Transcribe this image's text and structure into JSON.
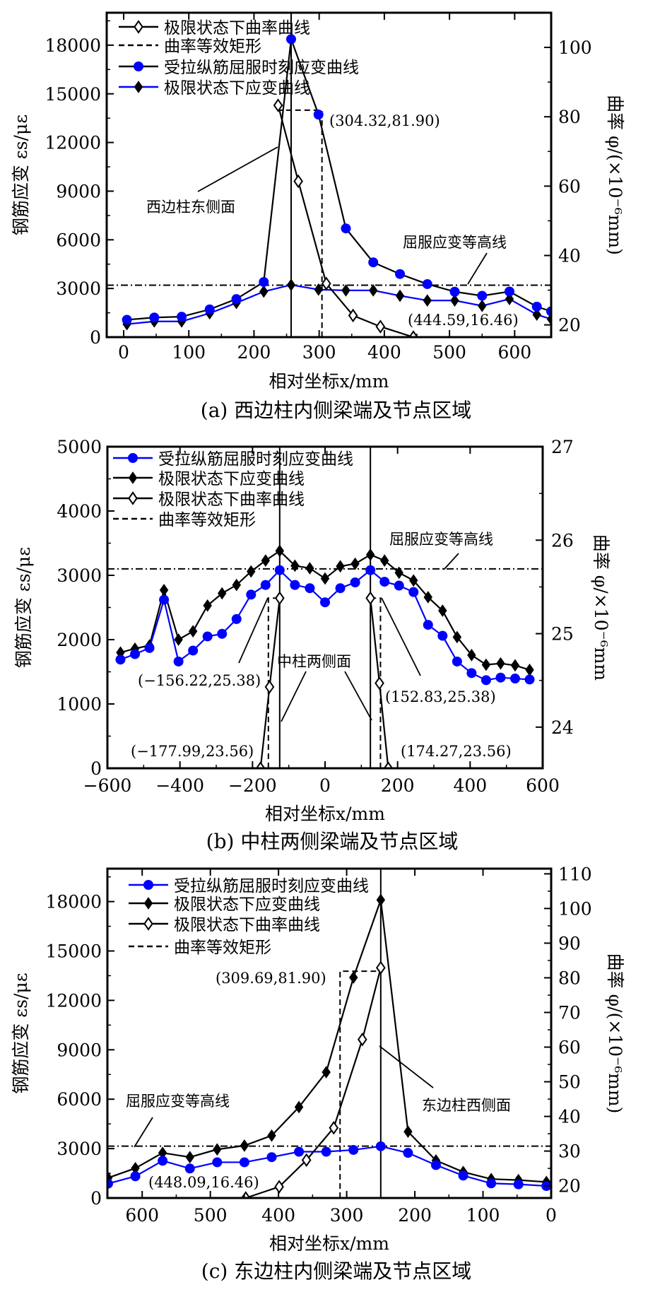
{
  "chart_data": [
    {
      "type": "line",
      "caption": "(a)  西边柱内侧梁端及节点区域",
      "xlabel": "相对坐标x/mm",
      "ylabel": "钢筋应变 εs/με",
      "ylabel_right": "曲率 φ/(×10⁻⁶mm)",
      "xlim": [
        -26,
        656
      ],
      "ylim": [
        0,
        20000
      ],
      "y2lim": [
        16.46,
        110
      ],
      "xticks": [
        0,
        100,
        200,
        300,
        400,
        500,
        600
      ],
      "xtick_labels": [
        "0",
        "100",
        "200",
        "300",
        "400",
        "500",
        "600"
      ],
      "yticks": [
        0,
        3000,
        6000,
        9000,
        12000,
        15000,
        18000
      ],
      "ytick_labels": [
        "0",
        "3000",
        "6000",
        "9000",
        "12000",
        "15000",
        "18000"
      ],
      "y2ticks": [
        20,
        40,
        60,
        80,
        100
      ],
      "y2tick_labels": [
        "20",
        "40",
        "60",
        "80",
        "100"
      ],
      "legend": [
        "curv",
        "rect",
        "yield",
        "ult"
      ],
      "series": {
        "curv": {
          "name": "极限状态下曲率曲线",
          "axis": "right",
          "line": "#000000",
          "marker": "open-diamond",
          "x": [
            237,
            268,
            311,
            352,
            394,
            444.59
          ],
          "y": [
            83.3,
            61.4,
            31.9,
            22.7,
            19.5,
            16.46
          ]
        },
        "rect": {
          "name": "曲率等效矩形",
          "axis": "right",
          "line": "#000000",
          "marker": "dashed",
          "x_edge": 304.32,
          "x_face": 237,
          "y": 81.9
        },
        "yield": {
          "name": "受拉纵筋屈服时刻应变曲线",
          "axis": "left",
          "line": "#000000",
          "marker": "circle",
          "marker_color": "#0000ff",
          "x": [
            5,
            47,
            89,
            132,
            173,
            215,
            257,
            299,
            341,
            383,
            424,
            466,
            508,
            550,
            592,
            634,
            656
          ],
          "y": [
            1070,
            1210,
            1260,
            1710,
            2350,
            3400,
            18370,
            13720,
            6700,
            4610,
            3890,
            3270,
            2800,
            2550,
            2810,
            1880,
            1590
          ]
        },
        "ult": {
          "name": "极限状态下应变曲线",
          "axis": "left",
          "line": "#0000ff",
          "marker": "diamond",
          "marker_color": "#000000",
          "x": [
            5,
            47,
            89,
            132,
            173,
            215,
            257,
            299,
            341,
            383,
            424,
            466,
            508,
            550,
            592,
            634,
            656
          ],
          "y": [
            800,
            970,
            970,
            1470,
            2110,
            2810,
            3220,
            2930,
            2880,
            2880,
            2550,
            2260,
            2260,
            1930,
            2350,
            1390,
            1110
          ]
        }
      },
      "yield_line": 3200,
      "face_lines": [
        257
      ],
      "annotations": [
        "(304.32,81.90)",
        "西边柱东侧面",
        "屈服应变等高线",
        "(444.59,16.46)"
      ]
    },
    {
      "type": "line",
      "caption": "(b)  中柱两侧梁端及节点区域",
      "xlabel": "相对坐标x/mm",
      "ylabel": "钢筋应变 εs/με",
      "ylabel_right": "曲率 φ/×10⁻⁶mm",
      "xlim": [
        -600,
        600
      ],
      "ylim": [
        0,
        5000
      ],
      "y2lim": [
        23.56,
        27
      ],
      "xticks": [
        -600,
        -400,
        -200,
        0,
        200,
        400,
        600
      ],
      "xtick_labels": [
        "−600",
        "−400",
        "−200",
        "0",
        "200",
        "400",
        "600"
      ],
      "yticks": [
        0,
        1000,
        2000,
        3000,
        4000,
        5000
      ],
      "ytick_labels": [
        "0",
        "1000",
        "2000",
        "3000",
        "4000",
        "5000"
      ],
      "y2ticks": [
        24,
        25,
        26,
        27
      ],
      "y2tick_labels": [
        "24",
        "25",
        "26",
        "27"
      ],
      "legend": [
        "yield",
        "ult",
        "curv",
        "rect"
      ],
      "series": {
        "yield": {
          "name": "受拉纵筋屈服时刻应变曲线",
          "axis": "left",
          "line": "#0000ff",
          "marker": "circle",
          "marker_color": "#0000ff",
          "x": [
            -564,
            -524,
            -484,
            -444,
            -404,
            -364,
            -324,
            -284,
            -244,
            -204,
            -164,
            -125,
            -83,
            -42,
            0,
            42,
            83,
            125,
            164,
            204,
            244,
            284,
            324,
            364,
            404,
            444,
            484,
            524,
            564
          ],
          "y": [
            1690,
            1775,
            1870,
            2620,
            1660,
            1830,
            2050,
            2090,
            2320,
            2700,
            2850,
            3080,
            2850,
            2800,
            2580,
            2800,
            2890,
            3080,
            2900,
            2840,
            2740,
            2230,
            2060,
            1660,
            1480,
            1370,
            1410,
            1395,
            1380
          ]
        },
        "ult": {
          "name": "极限状态下应变曲线",
          "axis": "left",
          "line": "#000000",
          "marker": "diamond",
          "marker_color": "#000000",
          "x": [
            -564,
            -524,
            -484,
            -444,
            -404,
            -364,
            -324,
            -284,
            -244,
            -204,
            -164,
            -125,
            -83,
            -42,
            0,
            42,
            83,
            125,
            164,
            204,
            244,
            284,
            324,
            364,
            404,
            444,
            484,
            524,
            564
          ],
          "y": [
            1800,
            1860,
            1910,
            2770,
            2000,
            2130,
            2530,
            2720,
            2850,
            3060,
            3230,
            3380,
            3150,
            3110,
            2950,
            3140,
            3180,
            3320,
            3230,
            3040,
            2920,
            2660,
            2450,
            2040,
            1760,
            1610,
            1630,
            1600,
            1530
          ]
        },
        "curv": {
          "name": "极限状态下曲率曲线",
          "axis": "right",
          "line": "#000000",
          "marker": "open-diamond",
          "segments": [
            {
              "x": [
                -177.99,
                -153,
                -125
              ],
              "y": [
                23.56,
                24.43,
                25.38
              ]
            },
            {
              "x": [
                125,
                150,
                174.27
              ],
              "y": [
                25.38,
                24.47,
                23.56
              ]
            }
          ]
        },
        "rect": {
          "name": "曲率等效矩形",
          "axis": "right",
          "line": "#000000",
          "marker": "dashed",
          "rects": [
            {
              "x_edge": -156.22,
              "x_face": -125,
              "y": 25.38
            },
            {
              "x_edge": 152.83,
              "x_face": 125,
              "y": 25.38
            }
          ]
        }
      },
      "yield_line": 3100,
      "face_lines": [
        -125,
        125
      ],
      "annotations": [
        "屈服应变等高线",
        "中柱两侧面",
        "(−156.22,25.38)",
        "(152.83,25.38)",
        "(−177.99,23.56)",
        "(174.27,23.56)"
      ]
    },
    {
      "type": "line",
      "caption": "(c)  东边柱内侧梁端及节点区域",
      "xlabel": "相对坐标x/mm",
      "ylabel": "钢筋应变 εs/με",
      "ylabel_right": "曲率 φ/(×10⁻⁶mm)",
      "xlim": [
        651,
        0
      ],
      "ylim": [
        0,
        20000
      ],
      "y2lim": [
        16.46,
        111.5
      ],
      "xticks": [
        600,
        500,
        400,
        300,
        200,
        100,
        0
      ],
      "xtick_labels": [
        "600",
        "500",
        "400",
        "300",
        "200",
        "100",
        "0"
      ],
      "yticks": [
        0,
        3000,
        6000,
        9000,
        12000,
        15000,
        18000
      ],
      "ytick_labels": [
        "0",
        "3000",
        "6000",
        "9000",
        "12000",
        "15000",
        "18000"
      ],
      "y2ticks": [
        20,
        30,
        40,
        50,
        60,
        70,
        80,
        90,
        100,
        110
      ],
      "y2tick_labels": [
        "20",
        "30",
        "40",
        "50",
        "60",
        "70",
        "80",
        "90",
        "100",
        "110"
      ],
      "legend": [
        "yield",
        "ult",
        "curv",
        "rect"
      ],
      "series": {
        "yield": {
          "name": "受拉纵筋屈服时刻应变曲线",
          "axis": "left",
          "line": "#0000ff",
          "marker": "circle",
          "marker_color": "#0000ff",
          "x": [
            650,
            610,
            570,
            530,
            490,
            450,
            410,
            370,
            330,
            290,
            250,
            210,
            169,
            129,
            88,
            48,
            7
          ],
          "y": [
            870,
            1320,
            2260,
            1790,
            2170,
            2170,
            2480,
            2810,
            2810,
            2920,
            3140,
            2740,
            2000,
            1360,
            890,
            830,
            730
          ]
        },
        "ult": {
          "name": "极限状态下应变曲线",
          "axis": "left",
          "line": "#000000",
          "marker": "diamond",
          "marker_color": "#000000",
          "x": [
            650,
            610,
            570,
            530,
            490,
            450,
            410,
            370,
            330,
            290,
            250,
            210,
            169,
            129,
            88,
            48,
            7
          ],
          "y": [
            1220,
            1810,
            2740,
            2480,
            2950,
            3180,
            3790,
            5520,
            7640,
            13390,
            18100,
            4030,
            2280,
            1580,
            1150,
            1090,
            970
          ]
        },
        "curv": {
          "name": "极限状态下曲率曲线",
          "axis": "right",
          "line": "#000000",
          "marker": "open-diamond",
          "x": [
            448.09,
            399,
            359,
            319,
            277,
            250
          ],
          "y": [
            16.46,
            19.7,
            27.4,
            36.7,
            62.2,
            82.9
          ]
        },
        "rect": {
          "name": "曲率等效矩形",
          "axis": "right",
          "line": "#000000",
          "marker": "dashed",
          "x_edge": 309.69,
          "x_face": 250,
          "y": 81.9
        }
      },
      "yield_line": 3150,
      "face_lines": [
        250
      ],
      "annotations": [
        "(309.69,81.90)",
        "东边柱西侧面",
        "屈服应变等高线",
        "(448.09,16.46)"
      ]
    }
  ]
}
